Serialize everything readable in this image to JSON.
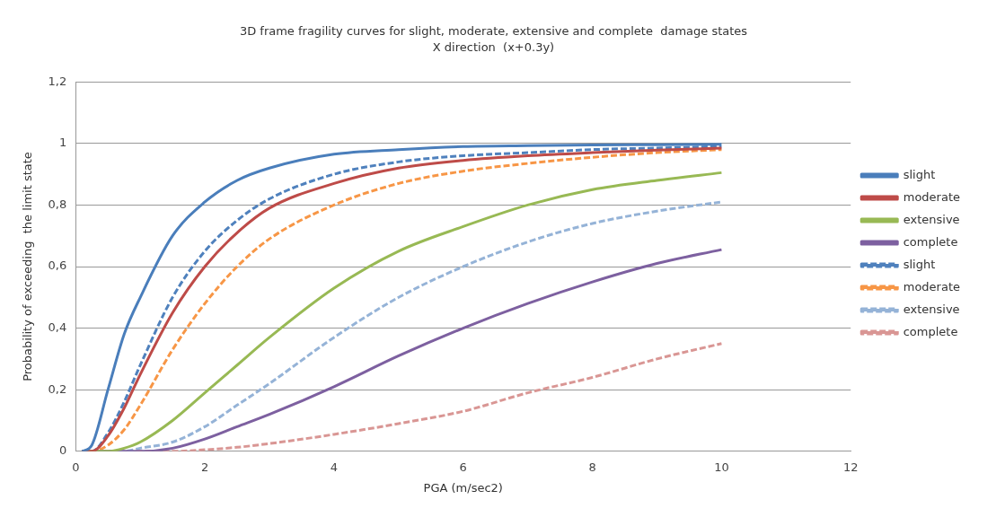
{
  "chart_data": {
    "type": "line",
    "title": "3D frame fragility curves for slight, moderate, extensive and complete  damage states",
    "subtitle": "X direction  (x+0.3y)",
    "xlabel": "PGA (m/sec2)",
    "ylabel": "Probability of exceeding  the limit state",
    "x": [
      0.1,
      0.25,
      0.5,
      0.75,
      1,
      1.5,
      2,
      2.5,
      3,
      4,
      5,
      6,
      7,
      8,
      9,
      10
    ],
    "series": [
      {
        "name": "slight",
        "color": "#4a7ebb",
        "line_style": "solid",
        "values": [
          0,
          0.02,
          0.2,
          0.38,
          0.5,
          0.7,
          0.81,
          0.88,
          0.92,
          0.965,
          0.98,
          0.99,
          0.993,
          0.995,
          0.996,
          0.997
        ]
      },
      {
        "name": "moderate",
        "color": "#be4b48",
        "line_style": "solid",
        "values": [
          0,
          0,
          0.05,
          0.14,
          0.25,
          0.45,
          0.6,
          0.71,
          0.79,
          0.87,
          0.92,
          0.945,
          0.96,
          0.97,
          0.978,
          0.985
        ]
      },
      {
        "name": "extensive",
        "color": "#98b954",
        "line_style": "solid",
        "values": [
          0,
          0,
          0,
          0.01,
          0.03,
          0.1,
          0.19,
          0.28,
          0.37,
          0.53,
          0.65,
          0.73,
          0.8,
          0.85,
          0.88,
          0.905
        ]
      },
      {
        "name": "complete",
        "color": "#7d60a0",
        "line_style": "solid",
        "values": [
          0,
          0,
          0,
          0,
          0,
          0.01,
          0.04,
          0.08,
          0.12,
          0.21,
          0.31,
          0.4,
          0.48,
          0.55,
          0.61,
          0.655
        ]
      },
      {
        "name": "slight",
        "color": "#4f81bd",
        "line_style": "dashed",
        "values": [
          0,
          0,
          0.06,
          0.16,
          0.28,
          0.5,
          0.65,
          0.75,
          0.82,
          0.9,
          0.94,
          0.96,
          0.97,
          0.98,
          0.985,
          0.99
        ]
      },
      {
        "name": "moderate",
        "color": "#f79646",
        "line_style": "dashed",
        "values": [
          0,
          0,
          0.02,
          0.07,
          0.15,
          0.33,
          0.48,
          0.6,
          0.69,
          0.8,
          0.87,
          0.91,
          0.935,
          0.955,
          0.97,
          0.98
        ]
      },
      {
        "name": "extensive",
        "color": "#95b3d7",
        "line_style": "dashed",
        "values": [
          0,
          0,
          0,
          0,
          0.01,
          0.03,
          0.08,
          0.15,
          0.22,
          0.37,
          0.5,
          0.6,
          0.68,
          0.74,
          0.78,
          0.81
        ]
      },
      {
        "name": "complete",
        "color": "#d99694",
        "line_style": "dashed",
        "values": [
          0,
          0,
          0,
          0,
          0,
          0,
          0.005,
          0.013,
          0.025,
          0.055,
          0.09,
          0.13,
          0.19,
          0.24,
          0.3,
          0.35
        ]
      }
    ],
    "xlim": [
      0,
      12
    ],
    "xticks": [
      0,
      2,
      4,
      6,
      8,
      10,
      12
    ],
    "ylim": [
      0,
      1.2
    ],
    "yticks": [
      0,
      {
        "value": 0.2,
        "label": "0,2"
      },
      {
        "value": 0.4,
        "label": "0,4"
      },
      {
        "value": 0.6,
        "label": "0,6"
      },
      {
        "value": 0.8,
        "label": "0,8"
      },
      1,
      {
        "value": 1.2,
        "label": "1,2"
      }
    ],
    "grid": "y",
    "legend": "right",
    "marker": "none"
  }
}
